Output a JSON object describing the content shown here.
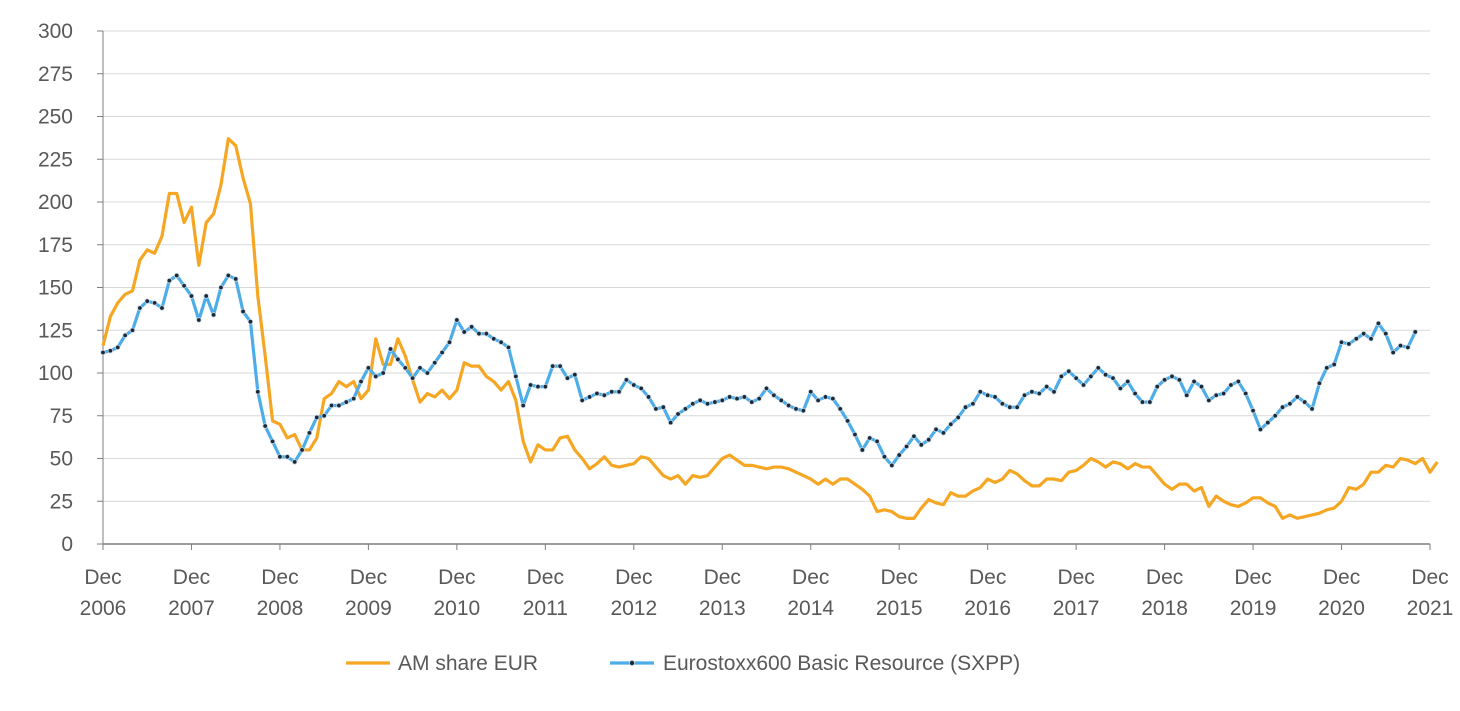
{
  "chart_data": {
    "type": "line",
    "title": "",
    "xlabel": "",
    "ylabel": "",
    "ylim": [
      0,
      300
    ],
    "yticks": [
      0,
      25,
      50,
      75,
      100,
      125,
      150,
      175,
      200,
      225,
      250,
      275,
      300
    ],
    "xticks": [
      {
        "month": "Dec",
        "year": "2006",
        "t": 0
      },
      {
        "month": "Dec",
        "year": "2007",
        "t": 12
      },
      {
        "month": "Dec",
        "year": "2008",
        "t": 24
      },
      {
        "month": "Dec",
        "year": "2009",
        "t": 36
      },
      {
        "month": "Dec",
        "year": "2010",
        "t": 48
      },
      {
        "month": "Dec",
        "year": "2011",
        "t": 60
      },
      {
        "month": "Dec",
        "year": "2012",
        "t": 72
      },
      {
        "month": "Dec",
        "year": "2013",
        "t": 84
      },
      {
        "month": "Dec",
        "year": "2014",
        "t": 96
      },
      {
        "month": "Dec",
        "year": "2015",
        "t": 108
      },
      {
        "month": "Dec",
        "year": "2016",
        "t": 120
      },
      {
        "month": "Dec",
        "year": "2017",
        "t": 132
      },
      {
        "month": "Dec",
        "year": "2018",
        "t": 144
      },
      {
        "month": "Dec",
        "year": "2019",
        "t": 156
      },
      {
        "month": "Dec",
        "year": "2020",
        "t": 168
      },
      {
        "month": "Dec",
        "year": "2021",
        "t": 180
      }
    ],
    "grid": true,
    "legend_position": "bottom",
    "series": [
      {
        "name": "AM share EUR",
        "color": "#F5A623",
        "marker": "none",
        "values": [
          116,
          133,
          141,
          146,
          148,
          166,
          172,
          170,
          180,
          205,
          205,
          188,
          197,
          163,
          188,
          193,
          210,
          237,
          233,
          214,
          199,
          145,
          110,
          72,
          70,
          62,
          64,
          55,
          55,
          62,
          85,
          88,
          95,
          92,
          95,
          85,
          90,
          120,
          105,
          105,
          120,
          110,
          96,
          83,
          88,
          86,
          90,
          85,
          90,
          106,
          104,
          104,
          98,
          95,
          90,
          95,
          84,
          60,
          48,
          58,
          55,
          55,
          62,
          63,
          55,
          50,
          44,
          47,
          51,
          46,
          45,
          46,
          47,
          51,
          50,
          45,
          40,
          38,
          40,
          35,
          40,
          39,
          40,
          45,
          50,
          52,
          49,
          46,
          46,
          45,
          44,
          45,
          45,
          44,
          42,
          40,
          38,
          35,
          38,
          35,
          38,
          38,
          35,
          32,
          28,
          19,
          20,
          19,
          16,
          15,
          15,
          21,
          26,
          24,
          23,
          30,
          28,
          28,
          31,
          33,
          38,
          36,
          38,
          43,
          41,
          37,
          34,
          34,
          38,
          38,
          37,
          42,
          43,
          46,
          50,
          48,
          45,
          48,
          47,
          44,
          47,
          45,
          45,
          40,
          35,
          32,
          35,
          35,
          31,
          33,
          22,
          28,
          25,
          23,
          22,
          24,
          27,
          27,
          24,
          22,
          15,
          17,
          15,
          16,
          17,
          18,
          20,
          21,
          25,
          33,
          32,
          35,
          42,
          42,
          46,
          45,
          50,
          49,
          47,
          50,
          42,
          48
        ]
      },
      {
        "name": "Eurostoxx600 Basic Resource (SXPP)",
        "color": "#4DADE8",
        "marker": "dot",
        "values": [
          112,
          113,
          115,
          122,
          125,
          138,
          142,
          141,
          138,
          154,
          157,
          151,
          145,
          131,
          145,
          134,
          150,
          157,
          155,
          136,
          130,
          89,
          69,
          60,
          51,
          51,
          48,
          55,
          65,
          74,
          75,
          81,
          81,
          83,
          85,
          95,
          103,
          98,
          100,
          114,
          108,
          103,
          97,
          103,
          100,
          106,
          112,
          118,
          131,
          124,
          127,
          123,
          123,
          120,
          118,
          115,
          98,
          81,
          93,
          92,
          92,
          104,
          104,
          97,
          99,
          84,
          86,
          88,
          87,
          89,
          89,
          96,
          93,
          91,
          86,
          79,
          80,
          71,
          76,
          79,
          82,
          84,
          82,
          83,
          84,
          86,
          85,
          86,
          83,
          85,
          91,
          87,
          84,
          81,
          79,
          78,
          89,
          84,
          86,
          85,
          79,
          72,
          64,
          55,
          62,
          60,
          51,
          46,
          52,
          57,
          63,
          58,
          61,
          67,
          65,
          70,
          74,
          80,
          82,
          89,
          87,
          86,
          82,
          80,
          80,
          87,
          89,
          88,
          92,
          89,
          98,
          101,
          97,
          93,
          98,
          103,
          99,
          97,
          91,
          95,
          88,
          83,
          83,
          92,
          96,
          98,
          96,
          87,
          95,
          92,
          84,
          87,
          88,
          93,
          95,
          88,
          78,
          67,
          71,
          75,
          80,
          82,
          86,
          83,
          79,
          94,
          103,
          105,
          118,
          117,
          120,
          123,
          120,
          129,
          123,
          112,
          116,
          115,
          124
        ]
      }
    ]
  }
}
